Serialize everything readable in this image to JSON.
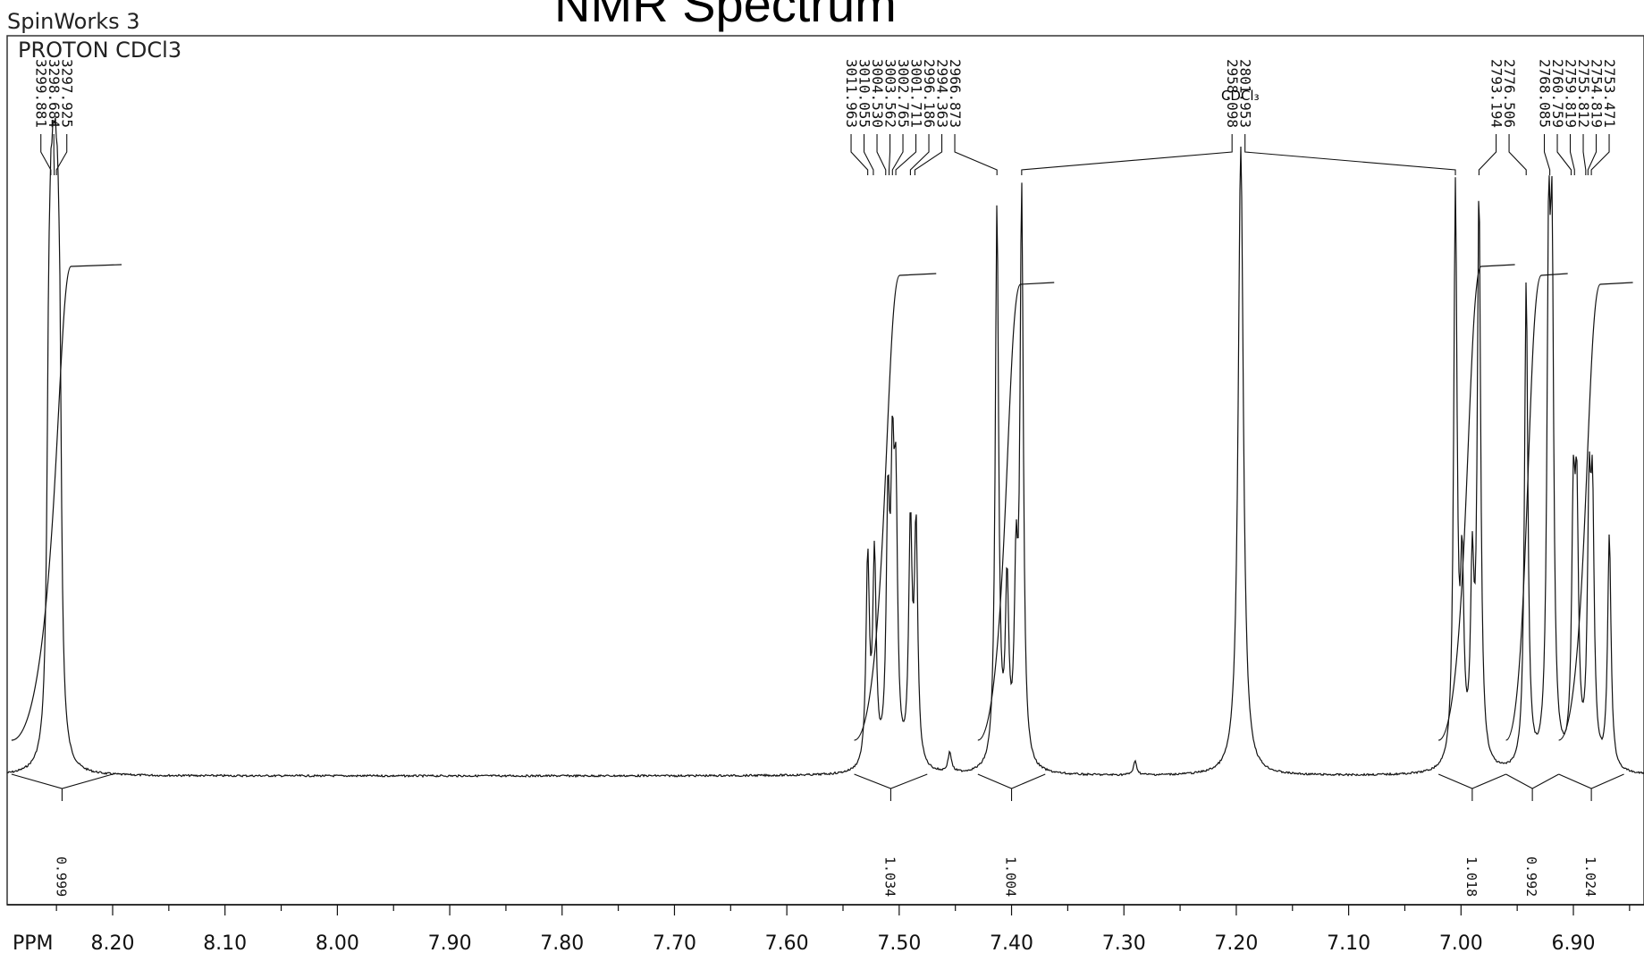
{
  "chart_title": "NMR Spectrum",
  "app_name": "SpinWorks 3",
  "experiment": "PROTON CDCl3",
  "chart_data": {
    "type": "line",
    "title": "NMR Spectrum",
    "xlabel": "PPM",
    "x_reversed": true,
    "xlim": [
      8.245,
      6.835
    ],
    "x_ticks": [
      8.2,
      8.1,
      8.0,
      7.9,
      7.8,
      7.7,
      7.6,
      7.5,
      7.4,
      7.3,
      7.2,
      7.1,
      7.0,
      6.9
    ],
    "x_tick_labels": [
      "8.20",
      "8.10",
      "8.00",
      "7.90",
      "7.80",
      "7.70",
      "7.60",
      "7.50",
      "7.40",
      "7.30",
      "7.20",
      "7.10",
      "7.00",
      "6.90"
    ],
    "solvent_peak": {
      "label": "CDCl₃",
      "ppm": 7.196,
      "height": 0.94
    },
    "peaks": [
      {
        "ppm": 8.257,
        "height": 0.42
      },
      {
        "ppm": 8.255,
        "height": 0.43
      },
      {
        "ppm": 8.253,
        "height": 0.42
      },
      {
        "ppm": 8.251,
        "height": 0.43
      },
      {
        "ppm": 8.249,
        "height": 0.42
      },
      {
        "ppm": 8.247,
        "height": 0.43
      },
      {
        "ppm": 7.528,
        "height": 0.31
      },
      {
        "ppm": 7.522,
        "height": 0.31
      },
      {
        "ppm": 7.51,
        "height": 0.36
      },
      {
        "ppm": 7.506,
        "height": 0.38
      },
      {
        "ppm": 7.503,
        "height": 0.36
      },
      {
        "ppm": 7.49,
        "height": 0.35
      },
      {
        "ppm": 7.485,
        "height": 0.35
      },
      {
        "ppm": 7.413,
        "height": 0.84
      },
      {
        "ppm": 7.404,
        "height": 0.26
      },
      {
        "ppm": 7.396,
        "height": 0.26
      },
      {
        "ppm": 7.391,
        "height": 0.85
      },
      {
        "ppm": 7.005,
        "height": 0.86
      },
      {
        "ppm": 6.999,
        "height": 0.27
      },
      {
        "ppm": 6.99,
        "height": 0.27
      },
      {
        "ppm": 6.984,
        "height": 0.85
      },
      {
        "ppm": 6.942,
        "height": 0.73
      },
      {
        "ppm": 6.922,
        "height": 0.7
      },
      {
        "ppm": 6.919,
        "height": 0.69
      },
      {
        "ppm": 6.9,
        "height": 0.36
      },
      {
        "ppm": 6.897,
        "height": 0.36
      },
      {
        "ppm": 6.886,
        "height": 0.36
      },
      {
        "ppm": 6.883,
        "height": 0.36
      },
      {
        "ppm": 6.868,
        "height": 0.35
      }
    ],
    "peak_labels": [
      {
        "text": "3299.881",
        "ppm": 8.255
      },
      {
        "text": "3298.684",
        "ppm": 8.252
      },
      {
        "text": "3297.925",
        "ppm": 8.25
      },
      {
        "text": "3011.963",
        "ppm": 7.528
      },
      {
        "text": "3010.055",
        "ppm": 7.523
      },
      {
        "text": "3004.530",
        "ppm": 7.512
      },
      {
        "text": "3003.562",
        "ppm": 7.509
      },
      {
        "text": "3002.765",
        "ppm": 7.506
      },
      {
        "text": "3001.711",
        "ppm": 7.503
      },
      {
        "text": "2996.186",
        "ppm": 7.49
      },
      {
        "text": "2994.363",
        "ppm": 7.486
      },
      {
        "text": "2966.873",
        "ppm": 7.413
      },
      {
        "text": "2958.098",
        "ppm": 7.391
      },
      {
        "text": "2801.953",
        "ppm": 7.005
      },
      {
        "text": "2793.194",
        "ppm": 6.984
      },
      {
        "text": "2776.506",
        "ppm": 6.942
      },
      {
        "text": "2768.085",
        "ppm": 6.921
      },
      {
        "text": "2760.759",
        "ppm": 6.902
      },
      {
        "text": "2759.819",
        "ppm": 6.899
      },
      {
        "text": "2755.812",
        "ppm": 6.889
      },
      {
        "text": "2754.819",
        "ppm": 6.887
      },
      {
        "text": "2753.471",
        "ppm": 6.884
      }
    ],
    "integrals": [
      {
        "label": "0.999",
        "from_ppm": 8.2,
        "to_ppm": 8.29
      },
      {
        "label": "1.034",
        "from_ppm": 7.475,
        "to_ppm": 7.54
      },
      {
        "label": "1.004",
        "from_ppm": 7.37,
        "to_ppm": 7.43
      },
      {
        "label": "1.018",
        "from_ppm": 6.96,
        "to_ppm": 7.02
      },
      {
        "label": "0.992",
        "from_ppm": 6.913,
        "to_ppm": 6.96
      },
      {
        "label": "1.024",
        "from_ppm": 6.855,
        "to_ppm": 6.913
      }
    ],
    "small_peaks": [
      {
        "ppm": 7.455,
        "height": 0.03
      },
      {
        "ppm": 7.29,
        "height": 0.02
      }
    ]
  }
}
